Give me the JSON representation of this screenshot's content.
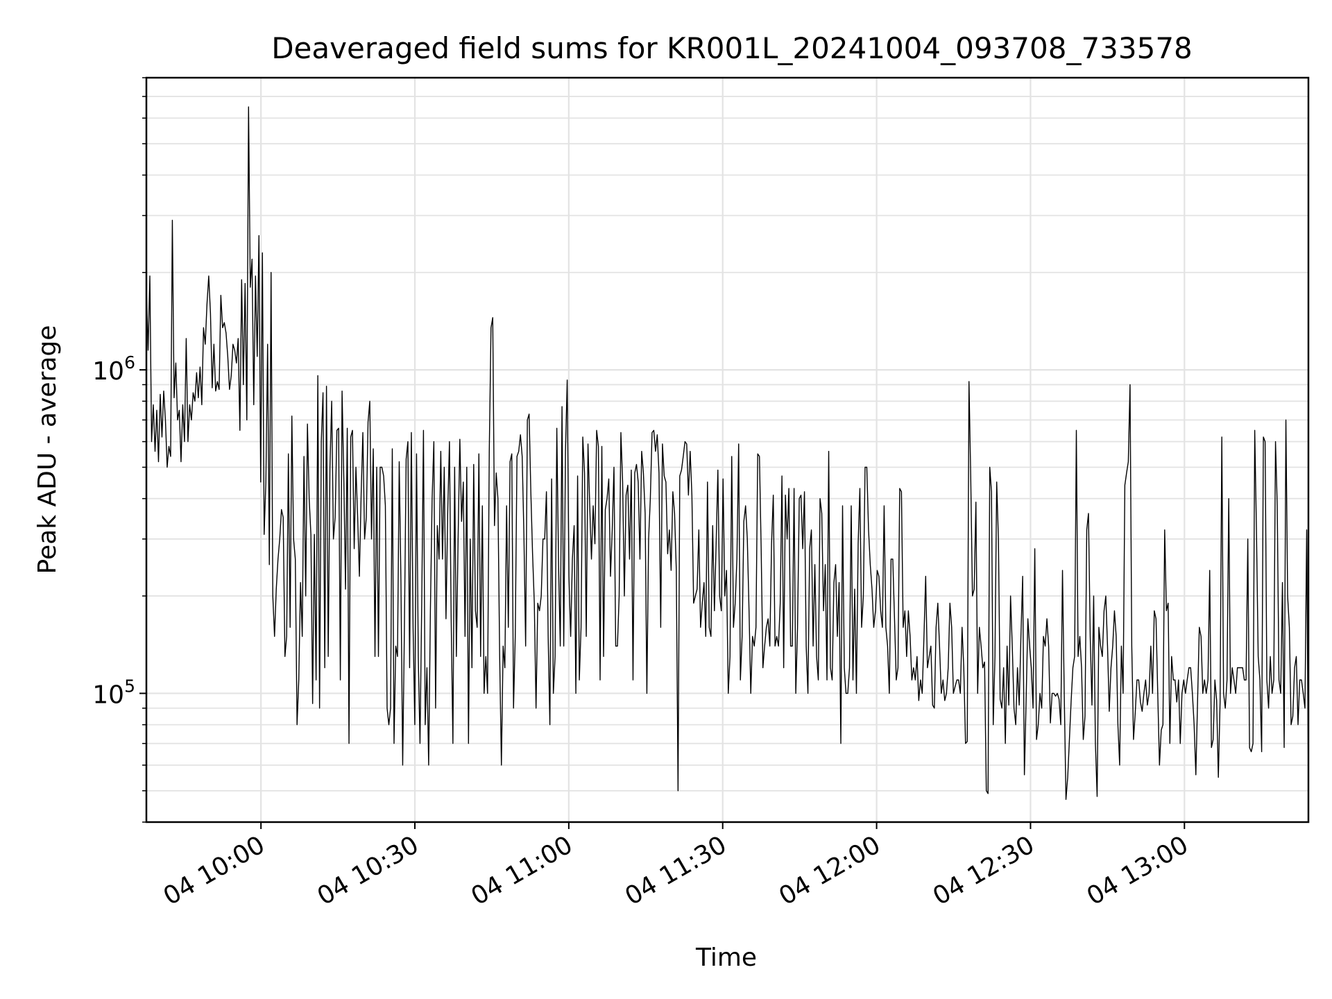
{
  "chart_data": {
    "type": "line",
    "title": "Deaveraged field sums for KR001L_20241004_093708_733578",
    "xlabel": "Time",
    "ylabel": "Peak ADU - average",
    "yscale": "log",
    "ylim": [
      40000,
      8000000
    ],
    "grid": true,
    "line_color": "#000000",
    "x_ticks": [
      "04 10:00",
      "04 10:30",
      "04 11:00",
      "04 11:30",
      "04 12:00",
      "04 12:30",
      "04 13:00"
    ],
    "x_tick_times": [
      "2024-10-04 10:00",
      "2024-10-04 10:30",
      "2024-10-04 11:00",
      "2024-10-04 11:30",
      "2024-10-04 12:00",
      "2024-10-04 12:30",
      "2024-10-04 13:00"
    ],
    "x_range": [
      "2024-10-04 09:37:40",
      "2024-10-04 13:24:10"
    ],
    "y_tick_labels": [
      {
        "base": "10",
        "exp": "5"
      },
      {
        "base": "10",
        "exp": "6"
      }
    ],
    "y_tick_values": [
      100000,
      1000000
    ],
    "series": [
      {
        "x_start": "2024-10-04 09:37:40",
        "x_end": "2024-10-04 13:24:10",
        "values": [
          1800000,
          1150000,
          1950000,
          600000,
          780000,
          560000,
          750000,
          520000,
          840000,
          620000,
          860000,
          700000,
          500000,
          580000,
          540000,
          2900000,
          820000,
          1050000,
          700000,
          750000,
          520000,
          780000,
          600000,
          1250000,
          600000,
          780000,
          700000,
          850000,
          800000,
          980000,
          820000,
          1020000,
          780000,
          1350000,
          1200000,
          1600000,
          1950000,
          1500000,
          880000,
          1200000,
          860000,
          920000,
          870000,
          1700000,
          1350000,
          1400000,
          1300000,
          1100000,
          870000,
          960000,
          1200000,
          1150000,
          1050000,
          1250000,
          650000,
          1900000,
          900000,
          1850000,
          700000,
          6500000,
          1800000,
          2200000,
          780000,
          1950000,
          1100000,
          2600000,
          450000,
          2300000,
          310000,
          450000,
          1200000,
          250000,
          2000000,
          200000,
          150000,
          210000,
          260000,
          300000,
          370000,
          350000,
          130000,
          150000,
          550000,
          160000,
          720000,
          300000,
          260000,
          80000,
          110000,
          220000,
          150000,
          540000,
          200000,
          680000,
          400000,
          310000,
          93000,
          310000,
          110000,
          960000,
          90000,
          600000,
          850000,
          120000,
          890000,
          130000,
          500000,
          800000,
          300000,
          350000,
          650000,
          660000,
          110000,
          860000,
          460000,
          210000,
          660000,
          70000,
          620000,
          650000,
          280000,
          500000,
          350000,
          230000,
          410000,
          640000,
          300000,
          350000,
          690000,
          800000,
          300000,
          570000,
          130000,
          500000,
          130000,
          500000,
          500000,
          470000,
          380000,
          90000,
          80000,
          90000,
          570000,
          70000,
          140000,
          130000,
          520000,
          220000,
          60000,
          160000,
          530000,
          600000,
          120000,
          640000,
          160000,
          80000,
          550000,
          130000,
          70000,
          190000,
          650000,
          80000,
          120000,
          60000,
          180000,
          400000,
          600000,
          90000,
          330000,
          260000,
          560000,
          260000,
          500000,
          170000,
          360000,
          600000,
          170000,
          70000,
          500000,
          130000,
          300000,
          610000,
          340000,
          450000,
          150000,
          500000,
          70000,
          300000,
          120000,
          510000,
          180000,
          160000,
          550000,
          130000,
          380000,
          100000,
          130000,
          100000,
          560000,
          1350000,
          1450000,
          330000,
          480000,
          400000,
          130000,
          60000,
          140000,
          120000,
          380000,
          160000,
          520000,
          550000,
          90000,
          150000,
          540000,
          560000,
          630000,
          540000,
          310000,
          140000,
          700000,
          730000,
          420000,
          270000,
          190000,
          90000,
          190000,
          180000,
          200000,
          300000,
          300000,
          420000,
          150000,
          80000,
          460000,
          100000,
          130000,
          660000,
          250000,
          140000,
          770000,
          140000,
          560000,
          930000,
          230000,
          150000,
          260000,
          330000,
          100000,
          470000,
          110000,
          160000,
          620000,
          480000,
          150000,
          590000,
          380000,
          260000,
          380000,
          290000,
          650000,
          580000,
          110000,
          580000,
          130000,
          370000,
          400000,
          460000,
          230000,
          320000,
          500000,
          140000,
          140000,
          200000,
          640000,
          450000,
          200000,
          410000,
          440000,
          260000,
          490000,
          110000,
          480000,
          510000,
          450000,
          260000,
          560000,
          480000,
          360000,
          100000,
          300000,
          400000,
          640000,
          650000,
          560000,
          630000,
          480000,
          160000,
          590000,
          470000,
          450000,
          270000,
          320000,
          240000,
          420000,
          360000,
          240000,
          50000,
          470000,
          490000,
          540000,
          600000,
          590000,
          410000,
          560000,
          410000,
          190000,
          200000,
          210000,
          320000,
          160000,
          190000,
          220000,
          150000,
          450000,
          160000,
          150000,
          330000,
          180000,
          290000,
          490000,
          200000,
          180000,
          460000,
          200000,
          240000,
          100000,
          130000,
          540000,
          160000,
          190000,
          260000,
          590000,
          110000,
          150000,
          340000,
          380000,
          300000,
          180000,
          100000,
          150000,
          140000,
          160000,
          550000,
          540000,
          280000,
          120000,
          140000,
          160000,
          170000,
          140000,
          290000,
          410000,
          140000,
          150000,
          140000,
          190000,
          470000,
          120000,
          410000,
          300000,
          430000,
          140000,
          140000,
          430000,
          100000,
          160000,
          400000,
          410000,
          280000,
          420000,
          140000,
          100000,
          280000,
          320000,
          140000,
          250000,
          130000,
          110000,
          400000,
          360000,
          180000,
          250000,
          110000,
          560000,
          120000,
          110000,
          220000,
          250000,
          150000,
          220000,
          70000,
          380000,
          120000,
          100000,
          100000,
          120000,
          380000,
          110000,
          210000,
          100000,
          290000,
          430000,
          160000,
          200000,
          500000,
          500000,
          320000,
          250000,
          210000,
          160000,
          180000,
          240000,
          230000,
          180000,
          160000,
          380000,
          160000,
          140000,
          100000,
          260000,
          260000,
          170000,
          110000,
          120000,
          430000,
          420000,
          160000,
          180000,
          130000,
          180000,
          150000,
          110000,
          120000,
          110000,
          130000,
          95000,
          110000,
          100000,
          150000,
          230000,
          120000,
          130000,
          140000,
          92000,
          90000,
          160000,
          190000,
          140000,
          100000,
          110000,
          95000,
          100000,
          120000,
          190000,
          160000,
          100000,
          105000,
          110000,
          110000,
          100000,
          160000,
          120000,
          70000,
          71000,
          920000,
          470000,
          200000,
          210000,
          390000,
          100000,
          160000,
          140000,
          120000,
          125000,
          50000,
          49000,
          500000,
          420000,
          80000,
          130000,
          450000,
          300000,
          96000,
          90000,
          120000,
          70000,
          140000,
          92000,
          200000,
          140000,
          90000,
          80000,
          120000,
          92000,
          150000,
          230000,
          56000,
          95000,
          170000,
          140000,
          120000,
          90000,
          280000,
          72000,
          80000,
          100000,
          90000,
          150000,
          140000,
          170000,
          140000,
          81000,
          100000,
          100000,
          98000,
          100000,
          96000,
          80000,
          240000,
          100000,
          47000,
          55000,
          72000,
          95000,
          120000,
          130000,
          650000,
          130000,
          150000,
          120000,
          72000,
          85000,
          320000,
          360000,
          150000,
          92000,
          200000,
          70000,
          48000,
          160000,
          140000,
          130000,
          180000,
          200000,
          140000,
          88000,
          120000,
          140000,
          180000,
          150000,
          80000,
          60000,
          140000,
          100000,
          440000,
          480000,
          520000,
          900000,
          140000,
          72000,
          87000,
          110000,
          110000,
          94000,
          88000,
          100000,
          110000,
          92000,
          100000,
          140000,
          100000,
          180000,
          170000,
          100000,
          60000,
          77000,
          80000,
          320000,
          180000,
          190000,
          70000,
          130000,
          110000,
          110000,
          94000,
          110000,
          70000,
          100000,
          110000,
          100000,
          110000,
          120000,
          120000,
          100000,
          80000,
          56000,
          95000,
          160000,
          150000,
          100000,
          110000,
          100000,
          110000,
          240000,
          68000,
          72000,
          110000,
          95000,
          55000,
          94000,
          620000,
          100000,
          90000,
          110000,
          400000,
          100000,
          120000,
          110000,
          100000,
          120000,
          120000,
          120000,
          120000,
          110000,
          110000,
          300000,
          68000,
          66000,
          70000,
          650000,
          320000,
          130000,
          110000,
          66000,
          620000,
          600000,
          110000,
          90000,
          130000,
          100000,
          110000,
          600000,
          380000,
          110000,
          100000,
          220000,
          68000,
          700000,
          200000,
          160000,
          80000,
          85000,
          120000,
          130000,
          80000,
          110000,
          110000,
          100000,
          90000,
          320000,
          52000
        ]
      }
    ]
  }
}
